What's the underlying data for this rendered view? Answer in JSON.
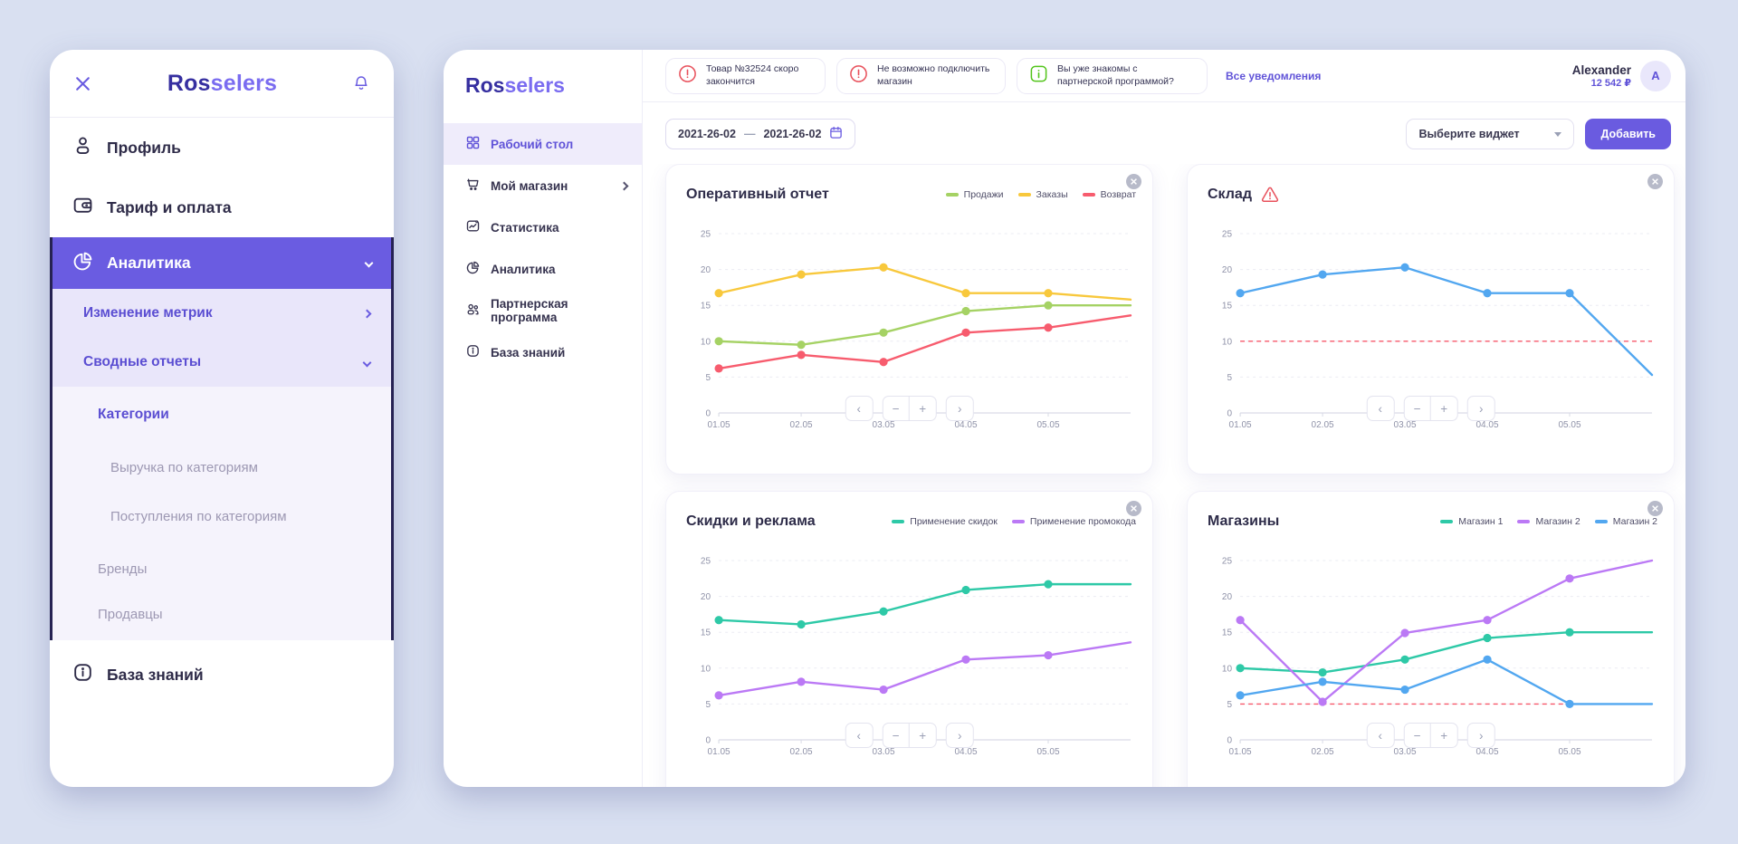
{
  "colors": {
    "accent": "#6a5ce1",
    "accent_text": "#6053d8",
    "page_bg": "#d9e0f1",
    "dark_text": "#2f2c49",
    "muted_text": "#9d98b3",
    "alert_red": "#e8505b",
    "info_green": "#52c41a",
    "threshold_red": "#f7596b"
  },
  "mobile_menu": {
    "logo_bold": "Ros",
    "logo_light": "selers",
    "items": {
      "profile": "Профиль",
      "tariff": "Тариф и оплата",
      "analytics": "Аналитика",
      "knowledge": "База знаний"
    },
    "analytics_submenu": {
      "metrics": "Изменение метрик",
      "reports": "Сводные отчеты",
      "categories": "Категории",
      "categories_children": [
        "Выручка по категориям",
        "Поступления по категориям"
      ],
      "brands": "Бренды",
      "sellers": "Продавцы"
    }
  },
  "dashboard": {
    "logo_bold": "Ros",
    "logo_light": "selers",
    "nav": [
      {
        "label": "Рабочий стол"
      },
      {
        "label": "Мой магазин"
      },
      {
        "label": "Статистика"
      },
      {
        "label": "Аналитика"
      },
      {
        "label": "Партнерская программа"
      },
      {
        "label": "База знаний"
      }
    ],
    "header": {
      "notifications": [
        {
          "icon": "alert-circle",
          "text": "Товар №32524 скоро закончится"
        },
        {
          "icon": "alert-circle",
          "text": "Не возможно подключить магазин"
        },
        {
          "icon": "info-square",
          "text": "Вы уже знакомы с партнерской программой?"
        }
      ],
      "all_notifications_link": "Все уведомления",
      "user_name": "Alexander",
      "user_balance": "12 542 ₽",
      "avatar_letter": "A"
    },
    "toolbar": {
      "date_from": "2021-26-02",
      "date_separator": "—",
      "date_to": "2021-26-02",
      "widget_select_placeholder": "Выберите виджет",
      "add_button": "Добавить"
    },
    "zoom_controls": {
      "prev": "‹",
      "zoom_out": "−",
      "zoom_in": "+",
      "next": "›"
    }
  },
  "chart_data": [
    {
      "type": "line",
      "title": "Оперативный отчет",
      "categories": [
        "01.05",
        "02.05",
        "03.05",
        "04.05",
        "05.05"
      ],
      "points_per_series": 6,
      "ylim": [
        0,
        25
      ],
      "yticks": [
        0,
        5,
        10,
        15,
        20,
        25
      ],
      "grid": "dashed-horizontal",
      "legend_position": "top-right",
      "show_legend": true,
      "series": [
        {
          "name": "Продажи",
          "color": "#a5d264",
          "values": [
            10,
            9.5,
            11.2,
            14.2,
            15,
            15
          ]
        },
        {
          "name": "Заказы",
          "color": "#f8c83c",
          "values": [
            16.7,
            19.3,
            20.3,
            16.7,
            16.7,
            15.8
          ]
        },
        {
          "name": "Возврат",
          "color": "#f75c6e",
          "values": [
            6.2,
            8.1,
            7.1,
            11.2,
            11.9,
            13.6
          ]
        }
      ]
    },
    {
      "type": "line",
      "title": "Склад",
      "warning": true,
      "categories": [
        "01.05",
        "02.05",
        "03.05",
        "04.05",
        "05.05"
      ],
      "points_per_series": 6,
      "ylim": [
        0,
        25
      ],
      "yticks": [
        0,
        5,
        10,
        15,
        20,
        25
      ],
      "grid": "dashed-horizontal",
      "threshold": 10,
      "show_legend": false,
      "series": [
        {
          "name": "",
          "color": "#52a7f0",
          "values": [
            16.7,
            19.3,
            20.3,
            16.7,
            16.7,
            5.3
          ]
        }
      ]
    },
    {
      "type": "line",
      "title": "Скидки и реклама",
      "categories": [
        "01.05",
        "02.05",
        "03.05",
        "04.05",
        "05.05"
      ],
      "points_per_series": 6,
      "ylim": [
        0,
        25
      ],
      "yticks": [
        0,
        5,
        10,
        15,
        20,
        25
      ],
      "grid": "dashed-horizontal",
      "legend_position": "top-right",
      "show_legend": true,
      "series": [
        {
          "name": "Применение скидок",
          "color": "#2ec9a7",
          "values": [
            16.7,
            16.1,
            17.9,
            20.9,
            21.7,
            21.7
          ]
        },
        {
          "name": "Применение промокода",
          "color": "#bb79f5",
          "values": [
            6.2,
            8.1,
            7.0,
            11.2,
            11.8,
            13.6
          ]
        }
      ]
    },
    {
      "type": "line",
      "title": "Магазины",
      "categories": [
        "01.05",
        "02.05",
        "03.05",
        "04.05",
        "05.05"
      ],
      "points_per_series": 6,
      "ylim": [
        0,
        25
      ],
      "yticks": [
        0,
        5,
        10,
        15,
        20,
        25
      ],
      "grid": "dashed-horizontal",
      "threshold": 5,
      "legend_position": "top-right",
      "show_legend": true,
      "series": [
        {
          "name": "Магазин 1",
          "color": "#2ec9a7",
          "values": [
            10,
            9.4,
            11.2,
            14.2,
            15,
            15
          ]
        },
        {
          "name": "Магазин 2",
          "color": "#bb79f5",
          "values": [
            16.7,
            5.3,
            14.9,
            16.7,
            22.5,
            25
          ]
        },
        {
          "name": "Магазин 2",
          "color": "#52a7f0",
          "values": [
            6.2,
            8.1,
            7.0,
            11.2,
            5.0,
            5.0
          ]
        }
      ]
    }
  ]
}
